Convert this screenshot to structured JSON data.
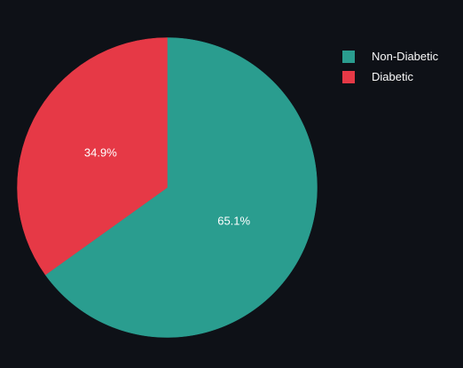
{
  "chart_data": {
    "type": "pie",
    "categories": [
      "Non-Diabetic",
      "Diabetic"
    ],
    "values": [
      65.1,
      34.9
    ],
    "labels": [
      "65.1%",
      "34.9%"
    ],
    "colors": [
      "#2a9d8f",
      "#e63946"
    ],
    "legend": "top-right",
    "start": "12 o'clock",
    "direction": "clockwise"
  },
  "legend": {
    "items": [
      {
        "label": "Non-Diabetic",
        "color": "#2a9d8f"
      },
      {
        "label": "Diabetic",
        "color": "#e63946"
      }
    ]
  },
  "background": "#0e1117",
  "text_color": "#fafafa"
}
